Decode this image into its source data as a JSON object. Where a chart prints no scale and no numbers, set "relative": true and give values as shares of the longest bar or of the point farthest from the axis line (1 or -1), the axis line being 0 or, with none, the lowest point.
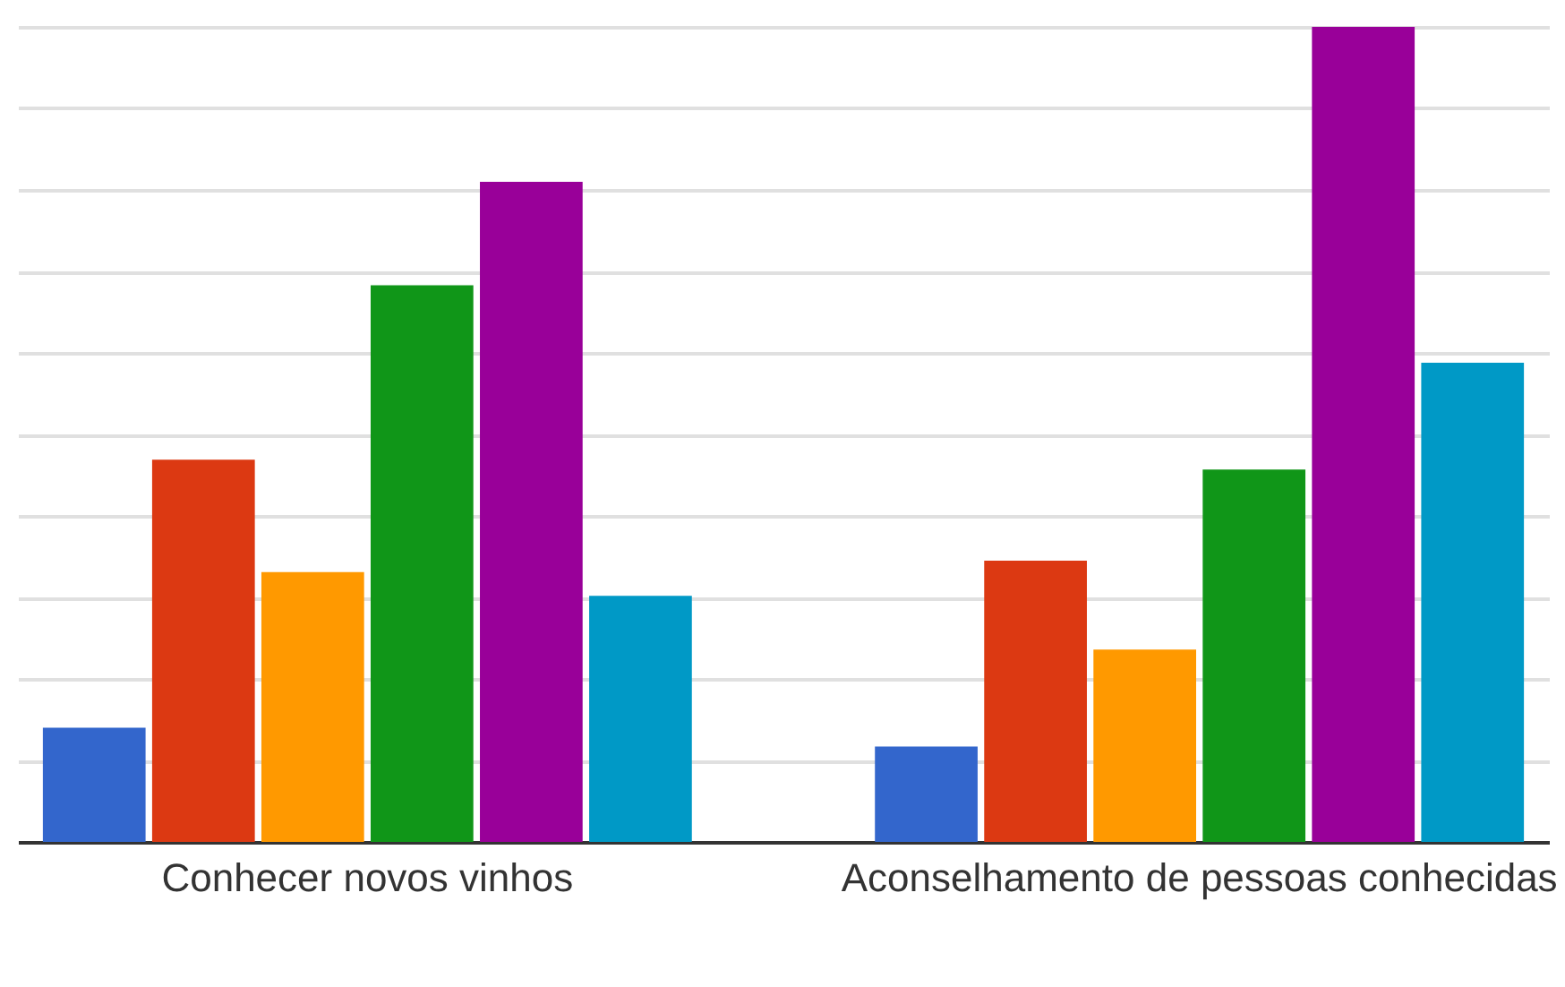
{
  "chart_data": {
    "type": "bar",
    "relative": true,
    "grid": true,
    "categories": [
      "Conhecer novos vinhos",
      "Aconselhamento de pessoas conhecidas"
    ],
    "series": [
      {
        "color": "#3366cc",
        "values": [
          0.14,
          0.117
        ]
      },
      {
        "color": "#dc3912",
        "values": [
          0.469,
          0.345
        ]
      },
      {
        "color": "#ff9900",
        "values": [
          0.331,
          0.236
        ]
      },
      {
        "color": "#109618",
        "values": [
          0.683,
          0.457
        ]
      },
      {
        "color": "#990099",
        "values": [
          0.81,
          1
        ]
      },
      {
        "color": "#0099c6",
        "values": [
          0.302,
          0.588
        ]
      }
    ]
  }
}
